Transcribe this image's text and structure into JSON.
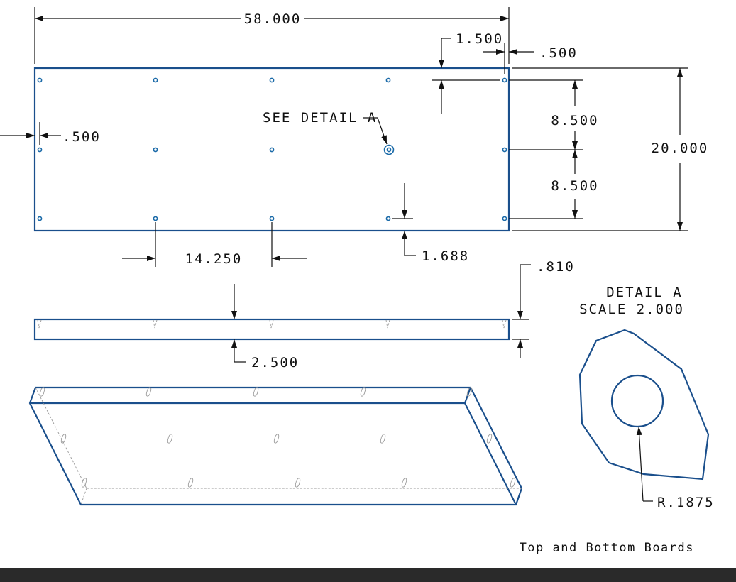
{
  "drawing": {
    "title": "Top and Bottom Boards",
    "detail_label": "DETAIL A",
    "detail_scale": "SCALE 2.000",
    "callout": "SEE DETAIL A",
    "dimensions": {
      "overall_length": "58.000",
      "edge_offset_top": "1.500",
      "edge_offset_right": ".500",
      "edge_offset_left": ".500",
      "row_spacing_upper": "8.500",
      "row_spacing_lower": "8.500",
      "overall_width": "20.000",
      "hole_spacing": "14.250",
      "edge_offset_bottom": "1.688",
      "thickness": ".810",
      "section_location": "2.500",
      "hole_radius": "R.1875"
    }
  },
  "colors": {
    "part_outline": "#1a4f8c",
    "hole_outline": "#1a6aa8",
    "dimension_lines": "#111111",
    "hidden_lines": "#9a9a9a",
    "footer_bar": "#2a2a2a"
  }
}
